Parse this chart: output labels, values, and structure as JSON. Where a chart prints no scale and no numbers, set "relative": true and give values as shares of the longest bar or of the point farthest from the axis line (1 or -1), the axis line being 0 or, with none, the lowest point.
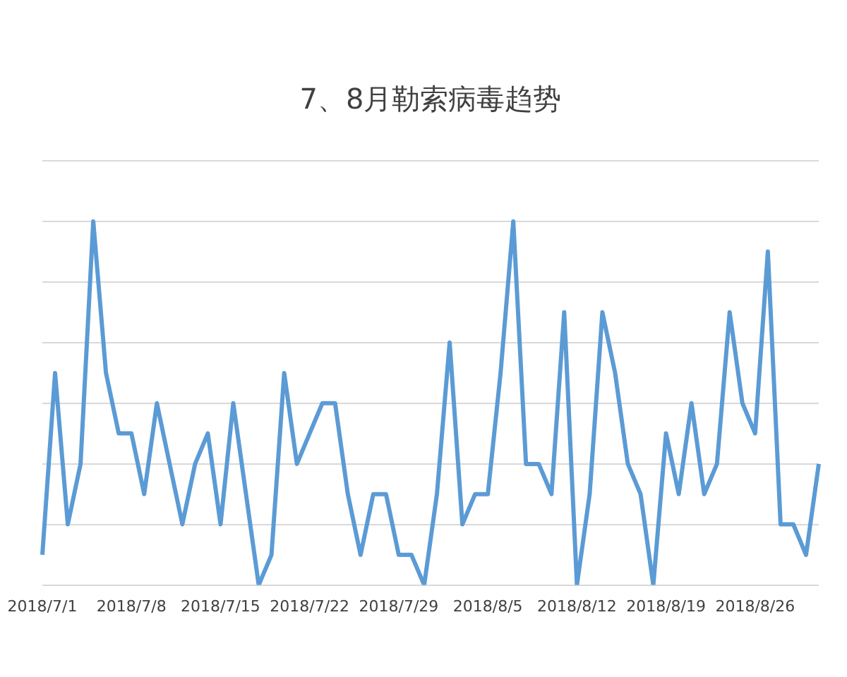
{
  "chart_data": {
    "type": "line",
    "title": "7、8月勒索病毒趋势",
    "relative": true,
    "grid": "y",
    "legend": false,
    "marker": "none",
    "line_style": "solid",
    "categories": [
      "2018/7/1",
      null,
      null,
      null,
      null,
      null,
      null,
      "2018/7/8",
      null,
      null,
      null,
      null,
      null,
      null,
      "2018/7/15",
      null,
      null,
      null,
      null,
      null,
      null,
      "2018/7/22",
      null,
      null,
      null,
      null,
      null,
      null,
      "2018/7/29",
      null,
      null,
      null,
      null,
      null,
      null,
      "2018/8/5",
      null,
      null,
      null,
      null,
      null,
      null,
      "2018/8/12",
      null,
      null,
      null,
      null,
      null,
      null,
      "2018/8/19",
      null,
      null,
      null,
      null,
      null,
      null,
      "2018/8/26",
      null,
      null,
      null,
      null,
      null
    ],
    "series": [
      {
        "color": "#5b9bd5",
        "values": [
          0.083,
          0.583,
          0.167,
          0.333,
          1,
          0.583,
          0.417,
          0.417,
          0.25,
          0.5,
          0.333,
          0.167,
          0.333,
          0.417,
          0.167,
          0.5,
          0.25,
          0,
          0.083,
          0.583,
          0.333,
          0.417,
          0.5,
          0.5,
          0.25,
          0.083,
          0.25,
          0.25,
          0.083,
          0.083,
          0,
          0.25,
          0.667,
          0.167,
          0.25,
          0.25,
          0.583,
          1,
          0.333,
          0.333,
          0.25,
          0.75,
          0,
          0.25,
          0.75,
          0.583,
          0.333,
          0.25,
          0,
          0.417,
          0.25,
          0.5,
          0.25,
          0.333,
          0.75,
          0.5,
          0.417,
          0.917,
          0.167,
          0.167,
          0.083,
          0.333
        ]
      }
    ]
  }
}
